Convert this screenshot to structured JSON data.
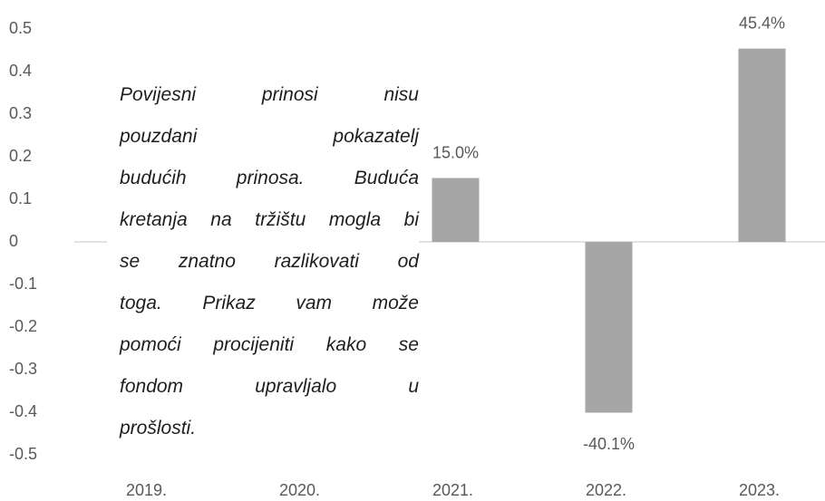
{
  "chart_data": {
    "type": "bar",
    "categories": [
      "2019.",
      "2020.",
      "2021.",
      "2022.",
      "2023."
    ],
    "values": [
      null,
      null,
      0.15,
      -0.401,
      0.454
    ],
    "value_labels": [
      null,
      null,
      "15.0%",
      "-40.1%",
      "45.4%"
    ],
    "color": "#a6a6a6",
    "ylim": [
      -0.5,
      0.5
    ],
    "yticks": [
      0.5,
      0.4,
      0.3,
      0.2,
      0.1,
      0,
      -0.1,
      -0.2,
      -0.3,
      -0.4,
      -0.5
    ],
    "grid": false,
    "annotation": [
      "Povijesni prinosi nisu",
      "pouzdani pokazatelj",
      "budućih prinosa. Buduća",
      "kretanja na tržištu mogla bi",
      "se znatno razlikovati od",
      "toga. Prikaz vam može",
      "pomoći procijeniti kako se",
      "fondom upravljalo u",
      "prošlosti."
    ]
  }
}
